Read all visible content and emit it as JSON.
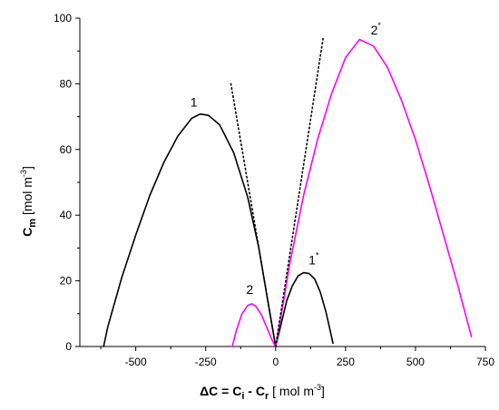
{
  "chart_data": {
    "type": "line",
    "title": "",
    "xlabel": "ΔC = C_i - C_r [ mol m^-3]",
    "ylabel": "C_m [mol m^-3]",
    "xlim": [
      -700,
      750
    ],
    "ylim": [
      0,
      100
    ],
    "x_ticks": [
      -500,
      -250,
      0,
      250,
      500,
      750
    ],
    "y_ticks": [
      0,
      20,
      40,
      60,
      80,
      100
    ],
    "grid": false,
    "series": [
      {
        "name": "1",
        "color": "#000000",
        "style": "solid",
        "points": [
          [
            -615,
            0
          ],
          [
            -600,
            6
          ],
          [
            -550,
            21
          ],
          [
            -500,
            34
          ],
          [
            -450,
            46
          ],
          [
            -400,
            56
          ],
          [
            -350,
            64
          ],
          [
            -300,
            69.5
          ],
          [
            -270,
            70.8
          ],
          [
            -240,
            70.4
          ],
          [
            -200,
            67.5
          ],
          [
            -150,
            59
          ],
          [
            -100,
            45.5
          ],
          [
            -60,
            30
          ],
          [
            -30,
            15
          ],
          [
            -10,
            5
          ],
          [
            0,
            0
          ]
        ]
      },
      {
        "name": "1*",
        "color": "#000000",
        "style": "solid",
        "points": [
          [
            0,
            0
          ],
          [
            20,
            7
          ],
          [
            40,
            14
          ],
          [
            60,
            18.5
          ],
          [
            80,
            21.5
          ],
          [
            100,
            22.5
          ],
          [
            120,
            22.2
          ],
          [
            140,
            20.5
          ],
          [
            160,
            16.5
          ],
          [
            180,
            10.5
          ],
          [
            200,
            3
          ],
          [
            205,
            1
          ]
        ]
      },
      {
        "name": "2",
        "color": "#ff00ff",
        "style": "solid",
        "points": [
          [
            -155,
            0
          ],
          [
            -140,
            5
          ],
          [
            -120,
            10
          ],
          [
            -100,
            12.5
          ],
          [
            -85,
            13
          ],
          [
            -70,
            12.2
          ],
          [
            -50,
            9.5
          ],
          [
            -30,
            5.5
          ],
          [
            -10,
            1.5
          ],
          [
            0,
            0
          ]
        ]
      },
      {
        "name": "2*",
        "color": "#ff00ff",
        "style": "solid",
        "points": [
          [
            0,
            0
          ],
          [
            25,
            12
          ],
          [
            50,
            25
          ],
          [
            100,
            46
          ],
          [
            150,
            63
          ],
          [
            200,
            77
          ],
          [
            250,
            88
          ],
          [
            300,
            93.5
          ],
          [
            350,
            91.5
          ],
          [
            400,
            85
          ],
          [
            450,
            75
          ],
          [
            500,
            63
          ],
          [
            550,
            49
          ],
          [
            600,
            34
          ],
          [
            650,
            19
          ],
          [
            700,
            3
          ]
        ]
      },
      {
        "name": "tangent-left",
        "color": "#000000",
        "style": "dotted",
        "points": [
          [
            -160,
            80
          ],
          [
            0,
            0
          ]
        ]
      },
      {
        "name": "tangent-right",
        "color": "#000000",
        "style": "dotted",
        "points": [
          [
            0,
            0
          ],
          [
            170,
            94
          ]
        ]
      }
    ],
    "annotations": [
      {
        "text": "1",
        "x": -305,
        "y": 73
      },
      {
        "text": "2",
        "x": -105,
        "y": 16
      },
      {
        "text": "1",
        "sup": "*",
        "x": 118,
        "y": 25
      },
      {
        "text": "2",
        "sup": "*",
        "x": 340,
        "y": 95
      }
    ]
  }
}
